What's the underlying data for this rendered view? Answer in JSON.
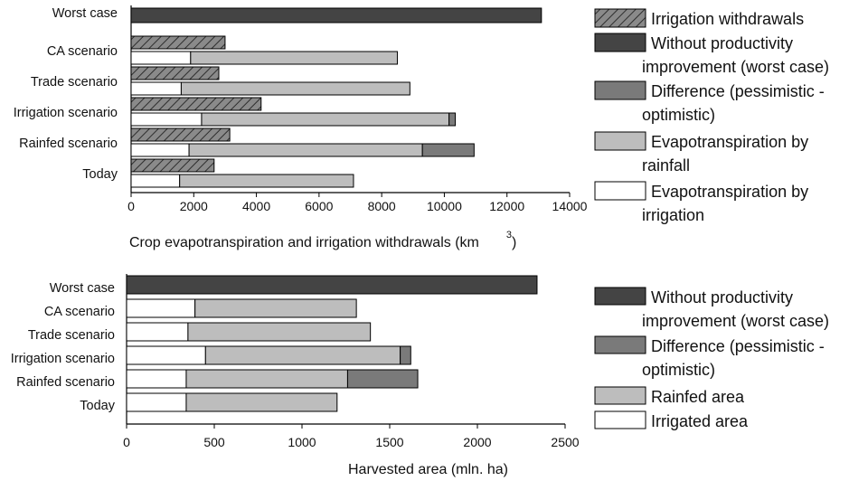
{
  "chart_data": [
    {
      "type": "bar",
      "orientation": "horizontal",
      "stacked": true,
      "xlabel": "Crop evapotranspiration and irrigation withdrawals (km",
      "xlabel_superscript": "3",
      "xlabel_close": ")",
      "xlim": [
        0,
        14000
      ],
      "xticks": [
        "0",
        "2000",
        "4000",
        "6000",
        "8000",
        "10000",
        "12000",
        "14000"
      ],
      "grid": false,
      "legend_position": "right",
      "legend": [
        {
          "key": "withdrawal",
          "lines": [
            "Irrigation withdrawals"
          ],
          "color": "#8a8a8a",
          "hatch": true
        },
        {
          "key": "worst",
          "lines": [
            "Without productivity",
            "improvement (worst case)"
          ],
          "color": "#444444"
        },
        {
          "key": "difference",
          "lines": [
            "Difference (pessimistic -",
            "optimistic)"
          ],
          "color": "#7a7a7a"
        },
        {
          "key": "rainfed",
          "lines": [
            "Evapotranspiration by",
            "rainfall"
          ],
          "color": "#bdbdbd"
        },
        {
          "key": "irrigated",
          "lines": [
            "Evapotranspiration by",
            "irrigation"
          ],
          "color": "#ffffff"
        }
      ],
      "categories": [
        "Worst case",
        "CA scenario",
        "Trade scenario",
        "Irrigation scenario",
        "Rainfed scenario",
        "Today"
      ],
      "rows": [
        {
          "category": "Worst case",
          "withdrawal": null,
          "irrigated": null,
          "rainfed": null,
          "difference": null,
          "worst": 13100
        },
        {
          "category": "CA scenario",
          "withdrawal": 3000,
          "irrigated": 1900,
          "rainfed": 6600,
          "difference": 0,
          "worst": null
        },
        {
          "category": "Trade scenario",
          "withdrawal": 2800,
          "irrigated": 1600,
          "rainfed": 7300,
          "difference": 0,
          "worst": null
        },
        {
          "category": "Irrigation scenario",
          "withdrawal": 4150,
          "irrigated": 2250,
          "rainfed": 7900,
          "difference": 200,
          "worst": null
        },
        {
          "category": "Rainfed scenario",
          "withdrawal": 3150,
          "irrigated": 1850,
          "rainfed": 7450,
          "difference": 1650,
          "worst": null
        },
        {
          "category": "Today",
          "withdrawal": 2650,
          "irrigated": 1550,
          "rainfed": 5550,
          "difference": 0,
          "worst": null
        }
      ]
    },
    {
      "type": "bar",
      "orientation": "horizontal",
      "stacked": true,
      "xlabel": "Harvested area (mln. ha)",
      "xlim": [
        0,
        2500
      ],
      "xticks": [
        "0",
        "500",
        "1000",
        "1500",
        "2000",
        "2500"
      ],
      "grid": false,
      "legend_position": "right",
      "legend": [
        {
          "key": "worst",
          "lines": [
            "Without productivity",
            "improvement (worst case)"
          ],
          "color": "#444444"
        },
        {
          "key": "difference",
          "lines": [
            "Difference (pessimistic -",
            "optimistic)"
          ],
          "color": "#7a7a7a"
        },
        {
          "key": "rainfed",
          "lines": [
            "Rainfed area"
          ],
          "color": "#bdbdbd"
        },
        {
          "key": "irrigated",
          "lines": [
            "Irrigated area"
          ],
          "color": "#ffffff"
        }
      ],
      "categories": [
        "Worst case",
        "CA scenario",
        "Trade scenario",
        "Irrigation scenario",
        "Rainfed scenario",
        "Today"
      ],
      "rows": [
        {
          "category": "Worst case",
          "irrigated": null,
          "rainfed": null,
          "difference": null,
          "worst": 2340
        },
        {
          "category": "CA scenario",
          "irrigated": 390,
          "rainfed": 920,
          "difference": 0,
          "worst": null
        },
        {
          "category": "Trade scenario",
          "irrigated": 350,
          "rainfed": 1040,
          "difference": 0,
          "worst": null
        },
        {
          "category": "Irrigation scenario",
          "irrigated": 450,
          "rainfed": 1110,
          "difference": 60,
          "worst": null
        },
        {
          "category": "Rainfed scenario",
          "irrigated": 340,
          "rainfed": 920,
          "difference": 400,
          "worst": null
        },
        {
          "category": "Today",
          "irrigated": 340,
          "rainfed": 860,
          "difference": 0,
          "worst": null
        }
      ]
    }
  ]
}
